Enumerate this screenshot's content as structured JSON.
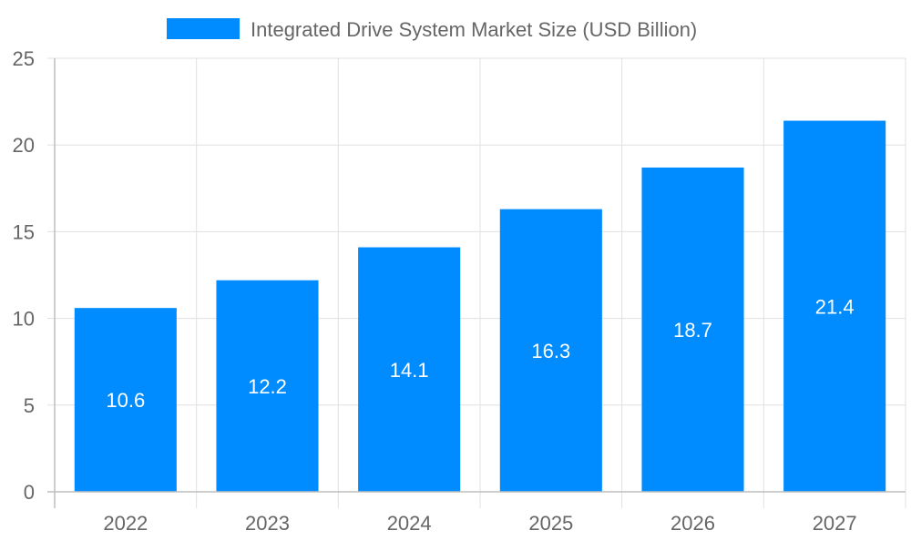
{
  "chart_data": {
    "type": "bar",
    "title": "",
    "xlabel": "",
    "ylabel": "",
    "categories": [
      "2022",
      "2023",
      "2024",
      "2025",
      "2026",
      "2027"
    ],
    "series": [
      {
        "name": "Integrated Drive System Market Size (USD Billion)",
        "values": [
          10.6,
          12.2,
          14.1,
          16.3,
          18.7,
          21.4
        ],
        "color": "#008cff"
      }
    ],
    "ylim": [
      0,
      25
    ],
    "yticks": [
      0,
      5,
      10,
      15,
      20,
      25
    ],
    "grid": true,
    "legend": "top-center",
    "data_labels": true,
    "data_label_color": "#ffffff"
  }
}
